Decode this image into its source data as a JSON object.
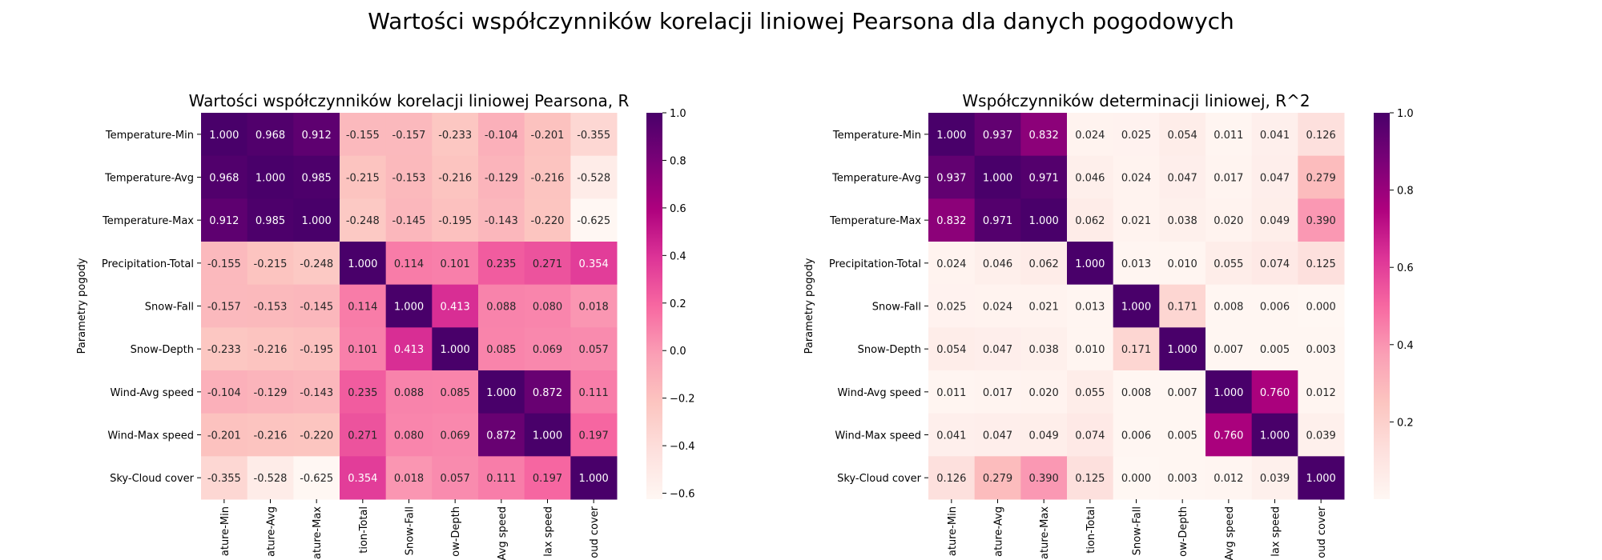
{
  "suptitle": "Wartości współczynników korelacji liniowej Pearsona dla danych pogodowych",
  "chart_data": [
    {
      "type": "heatmap",
      "title": "Wartości współczynników korelacji liniowej Pearsona, R",
      "ylabel": "Parametry pogody",
      "xlabel": "",
      "row_labels": [
        "Temperature-Min",
        "Temperature-Avg",
        "Temperature-Max",
        "Precipitation-Total",
        "Snow-Fall",
        "Snow-Depth",
        "Wind-Avg speed",
        "Wind-Max speed",
        "Sky-Cloud cover"
      ],
      "col_labels": [
        "ature-Min",
        "ature-Avg",
        "ature-Max",
        "tion-Total",
        "Snow-Fall",
        "ow-Depth",
        "Avg speed",
        "lax speed",
        "oud cover"
      ],
      "values": [
        [
          1.0,
          0.968,
          0.912,
          -0.155,
          -0.157,
          -0.233,
          -0.104,
          -0.201,
          -0.355
        ],
        [
          0.968,
          1.0,
          0.985,
          -0.215,
          -0.153,
          -0.216,
          -0.129,
          -0.216,
          -0.528
        ],
        [
          0.912,
          0.985,
          1.0,
          -0.248,
          -0.145,
          -0.195,
          -0.143,
          -0.22,
          -0.625
        ],
        [
          -0.155,
          -0.215,
          -0.248,
          1.0,
          0.114,
          0.101,
          0.235,
          0.271,
          0.354
        ],
        [
          -0.157,
          -0.153,
          -0.145,
          0.114,
          1.0,
          0.413,
          0.088,
          0.08,
          0.018
        ],
        [
          -0.233,
          -0.216,
          -0.195,
          0.101,
          0.413,
          1.0,
          0.085,
          0.069,
          0.057
        ],
        [
          -0.104,
          -0.129,
          -0.143,
          0.235,
          0.088,
          0.085,
          1.0,
          0.872,
          0.111
        ],
        [
          -0.201,
          -0.216,
          -0.22,
          0.271,
          0.08,
          0.069,
          0.872,
          1.0,
          0.197
        ],
        [
          -0.355,
          -0.528,
          -0.625,
          0.354,
          0.018,
          0.057,
          0.111,
          0.197,
          1.0
        ]
      ],
      "vmin": -0.625,
      "vmax": 1.0,
      "colormap": "RdPu",
      "colorbar_ticks": [
        1.0,
        0.8,
        0.6,
        0.4,
        0.2,
        0.0,
        -0.2,
        -0.4,
        -0.6
      ],
      "colorbar_tick_labels": [
        "1.0",
        "0.8",
        "0.6",
        "0.4",
        "0.2",
        "0.0",
        "−0.2",
        "−0.4",
        "−0.6"
      ]
    },
    {
      "type": "heatmap",
      "title": "Współczynników determinacji liniowej, R^2",
      "ylabel": "Parametry pogody",
      "xlabel": "",
      "row_labels": [
        "Temperature-Min",
        "Temperature-Avg",
        "Temperature-Max",
        "Precipitation-Total",
        "Snow-Fall",
        "Snow-Depth",
        "Wind-Avg speed",
        "Wind-Max speed",
        "Sky-Cloud cover"
      ],
      "col_labels": [
        "ature-Min",
        "ature-Avg",
        "ature-Max",
        "tion-Total",
        "Snow-Fall",
        "ow-Depth",
        "Avg speed",
        "lax speed",
        "oud cover"
      ],
      "values": [
        [
          1.0,
          0.937,
          0.832,
          0.024,
          0.025,
          0.054,
          0.011,
          0.041,
          0.126
        ],
        [
          0.937,
          1.0,
          0.971,
          0.046,
          0.024,
          0.047,
          0.017,
          0.047,
          0.279
        ],
        [
          0.832,
          0.971,
          1.0,
          0.062,
          0.021,
          0.038,
          0.02,
          0.049,
          0.39
        ],
        [
          0.024,
          0.046,
          0.062,
          1.0,
          0.013,
          0.01,
          0.055,
          0.074,
          0.125
        ],
        [
          0.025,
          0.024,
          0.021,
          0.013,
          1.0,
          0.171,
          0.008,
          0.006,
          0.0
        ],
        [
          0.054,
          0.047,
          0.038,
          0.01,
          0.171,
          1.0,
          0.007,
          0.005,
          0.003
        ],
        [
          0.011,
          0.017,
          0.02,
          0.055,
          0.008,
          0.007,
          1.0,
          0.76,
          0.012
        ],
        [
          0.041,
          0.047,
          0.049,
          0.074,
          0.006,
          0.005,
          0.76,
          1.0,
          0.039
        ],
        [
          0.126,
          0.279,
          0.39,
          0.125,
          0.0,
          0.003,
          0.012,
          0.039,
          1.0
        ]
      ],
      "vmin": 0.0,
      "vmax": 1.0,
      "colormap": "RdPu",
      "colorbar_ticks": [
        1.0,
        0.8,
        0.6,
        0.4,
        0.2
      ],
      "colorbar_tick_labels": [
        "1.0",
        "0.8",
        "0.6",
        "0.4",
        "0.2"
      ]
    }
  ]
}
